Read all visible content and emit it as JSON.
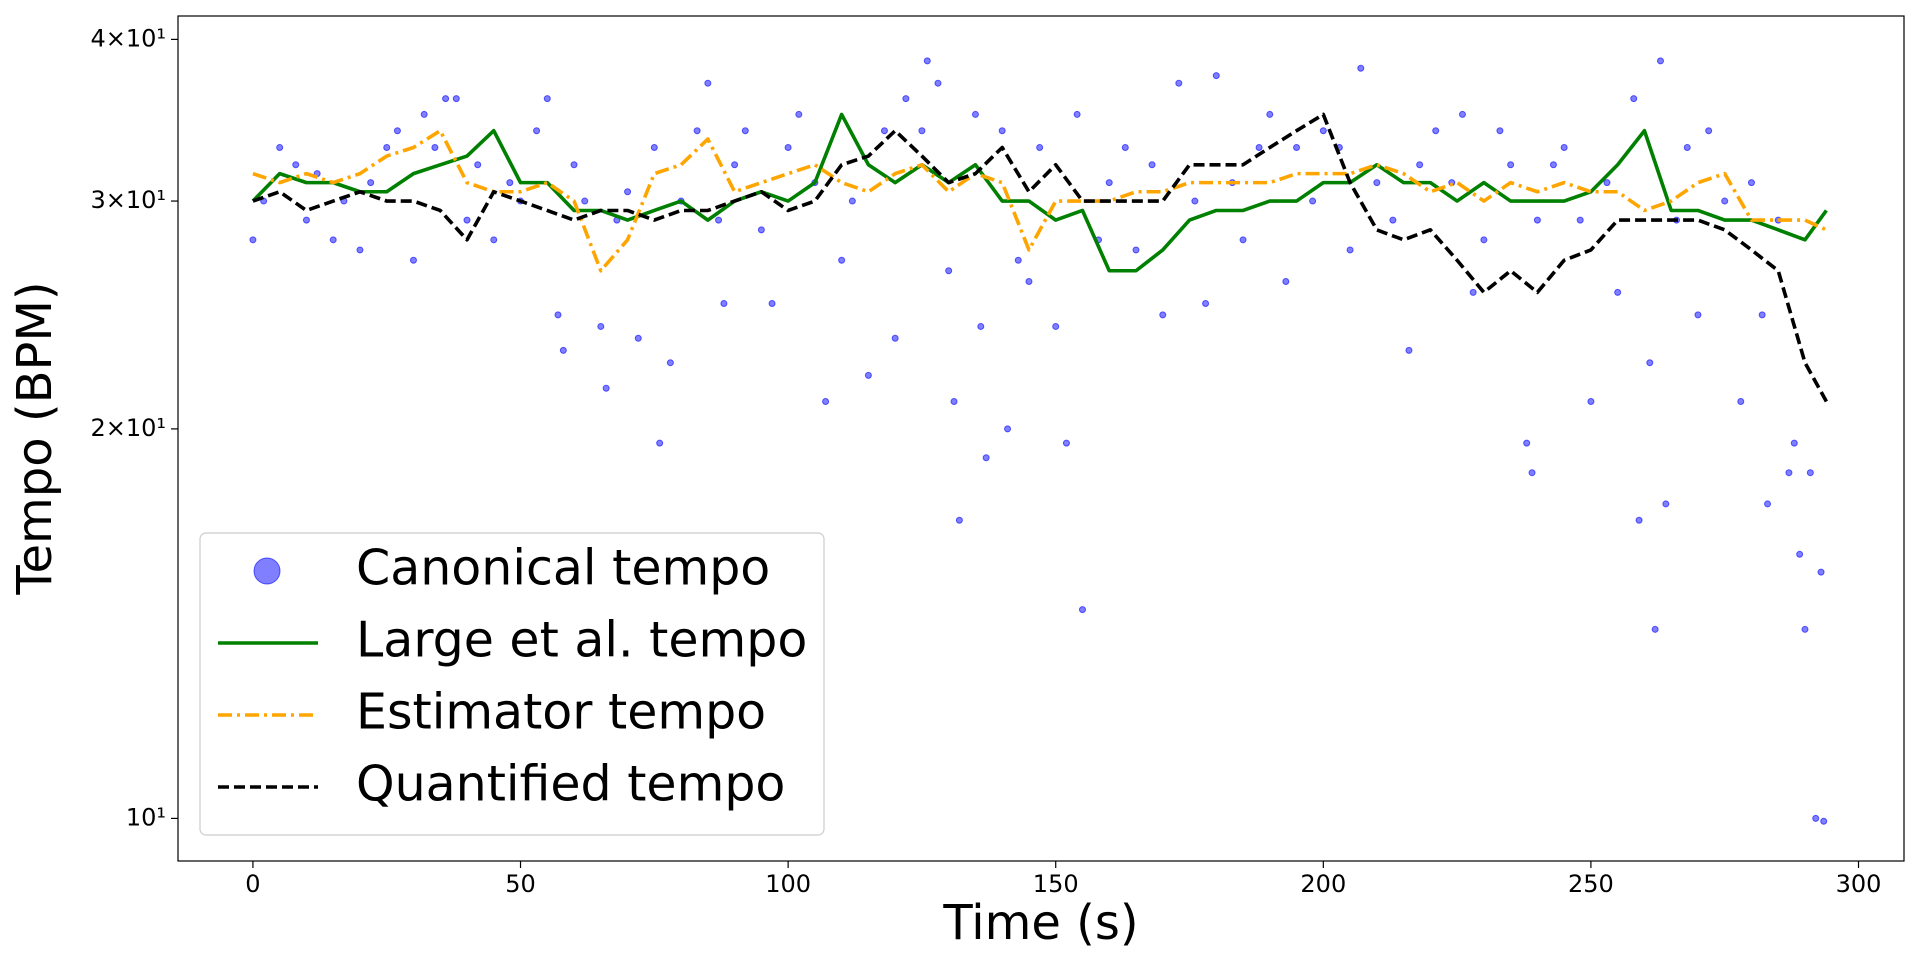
{
  "chart_data": {
    "type": "line",
    "xlabel": "Time (s)",
    "ylabel": "Tempo (BPM)",
    "yscale": "log",
    "xlim": [
      -14,
      308.5
    ],
    "ylim": [
      9.27,
      41.7
    ],
    "xticks": [
      0,
      50,
      100,
      150,
      200,
      250,
      300
    ],
    "yticks": [
      {
        "value": 10,
        "label": "10¹"
      },
      {
        "value": 20,
        "label": "2×10¹"
      },
      {
        "value": 30,
        "label": "3×10¹"
      },
      {
        "value": 40,
        "label": "4×10¹"
      }
    ],
    "legend": "lower left",
    "series": [
      {
        "name": "Canonical tempo",
        "color": "#0000ff",
        "kind": "scatter",
        "x": [
          0,
          2,
          5,
          8,
          10,
          12,
          15,
          17,
          20,
          22,
          25,
          27,
          30,
          32,
          34,
          36,
          38,
          40,
          42,
          45,
          48,
          50,
          53,
          55,
          57,
          58,
          60,
          62,
          65,
          66,
          68,
          70,
          72,
          75,
          76,
          78,
          80,
          83,
          85,
          87,
          88,
          90,
          92,
          95,
          97,
          100,
          102,
          105,
          107,
          110,
          112,
          115,
          118,
          120,
          122,
          125,
          126,
          128,
          130,
          131,
          132,
          135,
          136,
          137,
          140,
          141,
          143,
          145,
          147,
          150,
          152,
          154,
          155,
          158,
          160,
          163,
          165,
          168,
          170,
          173,
          176,
          178,
          180,
          183,
          185,
          188,
          190,
          193,
          195,
          198,
          200,
          203,
          205,
          207,
          210,
          213,
          216,
          218,
          221,
          224,
          226,
          228,
          230,
          233,
          235,
          238,
          239,
          240,
          243,
          245,
          248,
          250,
          253,
          255,
          258,
          259,
          261,
          262,
          263,
          264,
          266,
          268,
          270,
          272,
          275,
          278,
          280,
          282,
          283,
          285,
          287,
          288,
          289,
          290,
          291,
          292,
          293,
          293.5
        ],
        "values": [
          28,
          30,
          33,
          32,
          29,
          31.5,
          28,
          30,
          27.5,
          31,
          33,
          34,
          27,
          35,
          33,
          36,
          36,
          29,
          32,
          28,
          31,
          30,
          34,
          36,
          24.5,
          23,
          32,
          30,
          24,
          21.5,
          29,
          30.5,
          23.5,
          33,
          19.5,
          22.5,
          30,
          34,
          37,
          29,
          25,
          32,
          34,
          28.5,
          25,
          33,
          35,
          31,
          21,
          27,
          30,
          22,
          34,
          23.5,
          36,
          34,
          38.5,
          37,
          26.5,
          21,
          17,
          35,
          24,
          19,
          34,
          20,
          27,
          26,
          33,
          24,
          19.5,
          35,
          14.5,
          28,
          31,
          33,
          27.5,
          32,
          24.5,
          37,
          30,
          25,
          37.5,
          31,
          28,
          33,
          35,
          26,
          33,
          30,
          34,
          33,
          27.5,
          38,
          31,
          29,
          23,
          32,
          34,
          31,
          35,
          25.5,
          28,
          34,
          32,
          19.5,
          18.5,
          29,
          32,
          33,
          29,
          21,
          31,
          25.5,
          36,
          17,
          22.5,
          14,
          38.5,
          17.5,
          29,
          33,
          24.5,
          34,
          30,
          21,
          31,
          24.5,
          17.5,
          29,
          18.5,
          19.5,
          16,
          14,
          18.5,
          10,
          15.5,
          9.95
        ]
      },
      {
        "name": "Large et al. tempo",
        "color": "#008000",
        "kind": "line",
        "dash": "solid",
        "x": [
          0,
          5,
          10,
          15,
          20,
          25,
          30,
          35,
          40,
          45,
          50,
          55,
          60,
          65,
          70,
          75,
          80,
          85,
          90,
          95,
          100,
          105,
          110,
          115,
          120,
          125,
          130,
          135,
          140,
          145,
          150,
          155,
          160,
          165,
          170,
          175,
          180,
          185,
          190,
          195,
          200,
          205,
          210,
          215,
          220,
          225,
          230,
          235,
          240,
          245,
          250,
          255,
          260,
          265,
          270,
          275,
          280,
          285,
          290,
          294
        ],
        "values": [
          30,
          31.5,
          31,
          31,
          30.5,
          30.5,
          31.5,
          32,
          32.5,
          34,
          31,
          31,
          29.5,
          29.5,
          29,
          29.5,
          30,
          29,
          30,
          30.5,
          30,
          31,
          35,
          32,
          31,
          32,
          31,
          32,
          30,
          30,
          29,
          29.5,
          26.5,
          26.5,
          27.5,
          29,
          29.5,
          29.5,
          30,
          30,
          31,
          31,
          32,
          31,
          31,
          30,
          31,
          30,
          30,
          30,
          30.5,
          32,
          34,
          29.5,
          29.5,
          29,
          29,
          28.5,
          28,
          29.5
        ]
      },
      {
        "name": "Estimator tempo",
        "color": "#ffa500",
        "kind": "line",
        "dash": "dashdot",
        "x": [
          0,
          5,
          10,
          15,
          20,
          25,
          30,
          35,
          40,
          45,
          50,
          55,
          60,
          65,
          70,
          75,
          80,
          85,
          90,
          95,
          100,
          105,
          110,
          115,
          120,
          125,
          130,
          135,
          140,
          145,
          150,
          155,
          160,
          165,
          170,
          175,
          180,
          185,
          190,
          195,
          200,
          205,
          210,
          215,
          220,
          225,
          230,
          235,
          240,
          245,
          250,
          255,
          260,
          265,
          270,
          275,
          280,
          285,
          290,
          294
        ],
        "values": [
          31.5,
          31,
          31.5,
          31,
          31.5,
          32.5,
          33,
          34,
          31,
          30.5,
          30.5,
          31,
          30,
          26.5,
          28,
          31.5,
          32,
          33.5,
          30.5,
          31,
          31.5,
          32,
          31,
          30.5,
          31.5,
          32,
          30.5,
          31.5,
          31,
          27.5,
          30,
          30,
          30,
          30.5,
          30.5,
          31,
          31,
          31,
          31,
          31.5,
          31.5,
          31.5,
          32,
          31.5,
          30.5,
          31,
          30,
          31,
          30.5,
          31,
          30.5,
          30.5,
          29.5,
          30,
          31,
          31.5,
          29,
          29,
          29,
          28.5
        ]
      },
      {
        "name": "Quantified tempo",
        "color": "#000000",
        "kind": "line",
        "dash": "dashed",
        "x": [
          0,
          5,
          10,
          15,
          20,
          25,
          30,
          35,
          40,
          45,
          50,
          55,
          60,
          65,
          70,
          75,
          80,
          85,
          90,
          95,
          100,
          105,
          110,
          115,
          120,
          125,
          130,
          135,
          140,
          145,
          150,
          155,
          160,
          165,
          170,
          175,
          180,
          185,
          190,
          195,
          200,
          205,
          210,
          215,
          220,
          225,
          230,
          235,
          240,
          245,
          250,
          255,
          260,
          265,
          270,
          275,
          280,
          285,
          290,
          294
        ],
        "values": [
          30,
          30.5,
          29.5,
          30,
          30.5,
          30,
          30,
          29.5,
          28,
          30.5,
          30,
          29.5,
          29,
          29.5,
          29.5,
          29,
          29.5,
          29.5,
          30,
          30.5,
          29.5,
          30,
          32,
          32.5,
          34,
          32.5,
          31,
          31.5,
          33,
          30.5,
          32,
          30,
          30,
          30,
          30,
          32,
          32,
          32,
          33,
          34,
          35,
          31,
          28.5,
          28,
          28.5,
          27,
          25.5,
          26.5,
          25.5,
          27,
          27.5,
          29,
          29,
          29,
          29,
          28.5,
          27.5,
          26.5,
          22.5,
          21
        ]
      }
    ]
  }
}
